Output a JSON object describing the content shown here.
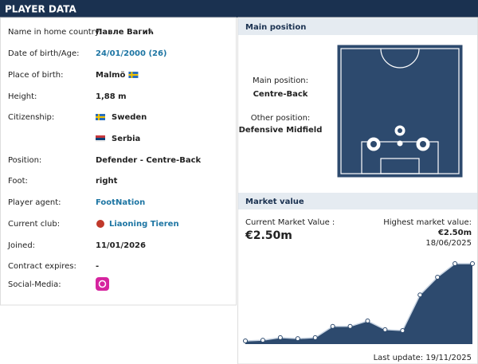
{
  "header": {
    "title": "PLAYER DATA"
  },
  "player_data": {
    "rows": [
      {
        "label": "Name in home country:",
        "value": "Павле Вагић"
      },
      {
        "label": "Date of birth/Age:",
        "value": "24/01/2000 (26)"
      },
      {
        "label": "Place of birth:",
        "value": "Malmö"
      },
      {
        "label": "Height:",
        "value": "1,88 m"
      },
      {
        "label": "Citizenship:",
        "value": "Sweden"
      },
      {
        "value": "Serbia"
      },
      {
        "label": "Position:",
        "value": "Defender - Centre-Back"
      },
      {
        "label": "Foot:",
        "value": "right"
      },
      {
        "label": "Player agent:",
        "value": "FootNation"
      },
      {
        "label": "Current club:",
        "value": "Liaoning Tieren"
      },
      {
        "label": "Joined:",
        "value": "11/01/2026"
      },
      {
        "label": "Contract expires:",
        "value": "-"
      },
      {
        "label": "Social-Media:"
      }
    ]
  },
  "main_position": {
    "title": "Main position",
    "main_label": "Main position:",
    "main": "Centre-Back",
    "other_label": "Other position:",
    "other": "Defensive Midfield"
  },
  "market_value": {
    "title": "Market value",
    "current_label": "Current Market Value :",
    "current": "€2.50m",
    "highest_label": "Highest market value:",
    "highest": "€2.50m",
    "highest_date": "18/06/2025",
    "last_update": "Last update: 19/11/2025"
  },
  "chart_data": {
    "type": "area",
    "categories": [
      null,
      null,
      null,
      null,
      null,
      null,
      null,
      null,
      null,
      null,
      null,
      null,
      null,
      null
    ],
    "values": [
      0.1,
      0.12,
      0.2,
      0.17,
      0.2,
      0.55,
      0.55,
      0.72,
      0.45,
      0.42,
      1.53,
      2.08,
      2.5,
      2.5
    ],
    "color": "#2d4a6e",
    "ylim": [
      0,
      2.5
    ]
  }
}
